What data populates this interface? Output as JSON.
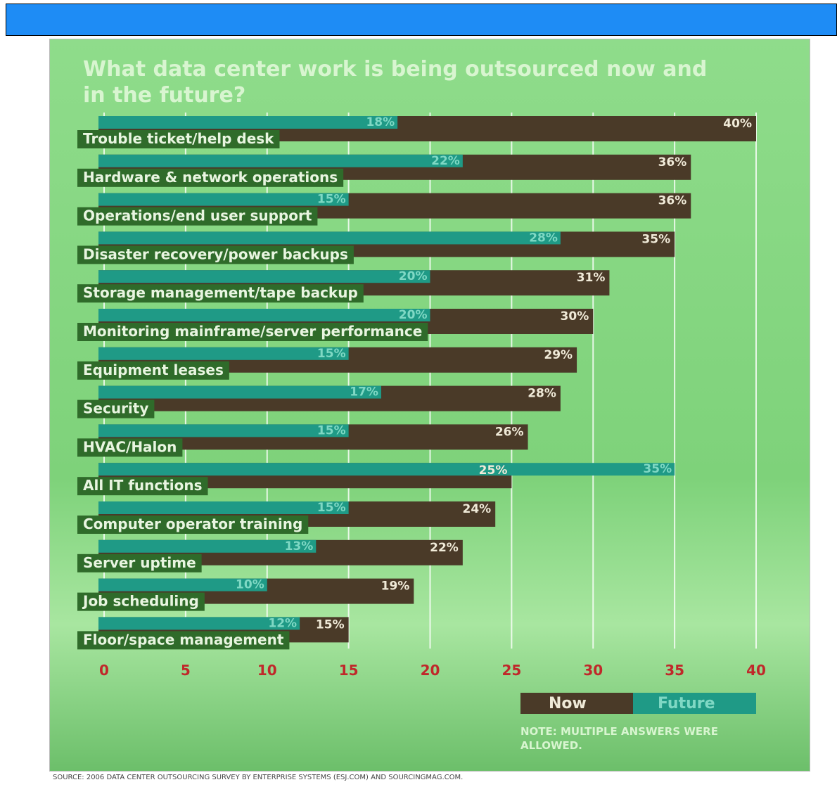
{
  "chart_data": {
    "type": "bar",
    "orientation": "horizontal",
    "title": "What data center work is being outsourced now and in the future?",
    "categories": [
      "Trouble ticket/help desk",
      "Hardware & network operations",
      "Operations/end user support",
      "Disaster recovery/power backups",
      "Storage management/tape backup",
      "Monitoring mainframe/server performance",
      "Equipment leases",
      "Security",
      "HVAC/Halon",
      "All IT functions",
      "Computer operator training",
      "Server uptime",
      "Job scheduling",
      "Floor/space management"
    ],
    "series": [
      {
        "name": "Now",
        "color": "#4a3a28",
        "values": [
          40,
          36,
          36,
          35,
          31,
          30,
          29,
          28,
          26,
          25,
          24,
          22,
          19,
          15
        ],
        "value_labels": [
          "40%",
          "36%",
          "36%",
          "35%",
          "31%",
          "30%",
          "29%",
          "28%",
          "26%",
          "25%",
          "24%",
          "22%",
          "19%",
          "15%"
        ]
      },
      {
        "name": "Future",
        "color": "#1f9a86",
        "values": [
          18,
          22,
          15,
          28,
          20,
          20,
          15,
          17,
          15,
          35,
          15,
          13,
          10,
          12
        ],
        "value_labels": [
          "18%",
          "22%",
          "15%",
          "28%",
          "20%",
          "20%",
          "15%",
          "17%",
          "15%",
          "35%",
          "15%",
          "13%",
          "10%",
          "12%"
        ]
      }
    ],
    "xlim": [
      0,
      40
    ],
    "xticks": [
      0,
      5,
      10,
      15,
      20,
      25,
      30,
      35,
      40
    ],
    "grid": true,
    "legend": "bottom-right",
    "note": "NOTE: MULTIPLE ANSWERS WERE ALLOWED.",
    "source": "SOURCE: 2006 DATA CENTER OUTSOURCING SURVEY BY ENTERPRISE SYSTEMS (ESJ.COM) AND SOURCINGMAG.COM."
  }
}
